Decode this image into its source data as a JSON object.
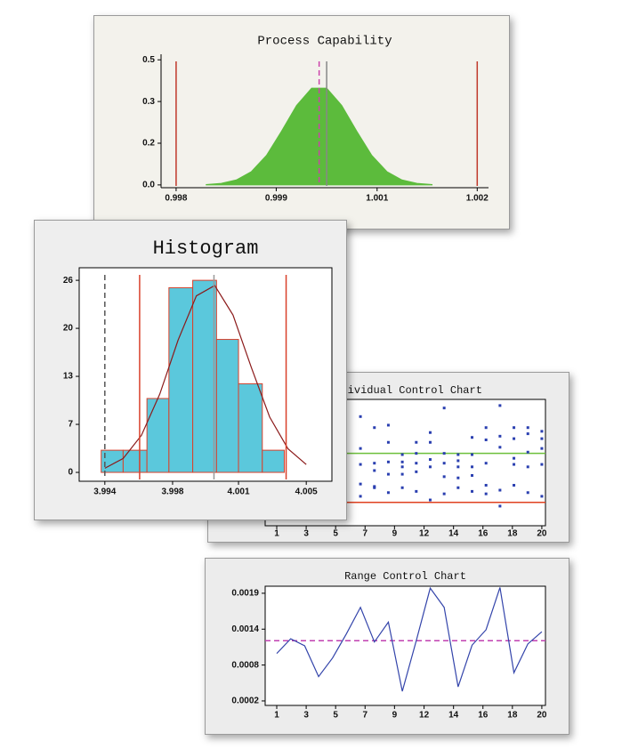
{
  "chart_data": [
    {
      "type": "area",
      "title": "Process Capability",
      "x": [
        0.9984,
        0.9986,
        0.9988,
        0.999,
        0.9992,
        0.9994,
        0.9996,
        0.9998,
        1.0,
        1.0002,
        1.0004,
        1.0006,
        1.0008,
        1.001,
        1.0012,
        1.0014
      ],
      "values": [
        0.0014,
        0.0055,
        0.018,
        0.048,
        0.106,
        0.193,
        0.286,
        0.348,
        0.348,
        0.286,
        0.193,
        0.106,
        0.048,
        0.018,
        0.0055,
        0.0014
      ],
      "color": "#5cbb3c",
      "xlim": [
        0.9978,
        1.00215
      ],
      "ylim": [
        -0.01,
        0.47
      ],
      "xticks": [
        0.998,
        {
          "value": 0.99933,
          "label": "0.999"
        },
        {
          "value": 1.00067,
          "label": "1.001"
        },
        1.002
      ],
      "yticks": [
        {
          "value": 0,
          "label": "0.0"
        },
        {
          "value": 0.15,
          "label": "0.2"
        },
        0.3,
        {
          "value": 0.45,
          "label": "0.5"
        }
      ],
      "vlines": [
        {
          "value": 0.998,
          "color": "#c0392b"
        },
        {
          "value": 1.002,
          "color": "#c0392b"
        },
        {
          "value": 0.9999,
          "color": "#cc44aa",
          "dash": true
        },
        {
          "value": 1.0,
          "color": "#888888"
        }
      ]
    },
    {
      "type": "histogram",
      "title": "Histogram",
      "bins": [
        3.9938,
        3.995,
        3.9963,
        3.9975,
        3.9988,
        4.0001,
        4.0013,
        4.0026,
        4.0038
      ],
      "values": [
        3,
        3,
        10,
        25,
        26,
        18,
        12,
        3
      ],
      "color": "#5bc8dc",
      "edgecolor": "#d9412b",
      "curve": {
        "x": [
          3.994,
          3.995,
          3.996,
          3.997,
          3.998,
          3.999,
          4.0,
          4.001,
          4.002,
          4.003,
          4.004,
          4.005
        ],
        "values": [
          0.56,
          1.88,
          5.02,
          10.6,
          17.9,
          23.9,
          25.3,
          21.3,
          14.2,
          7.5,
          3.2,
          1.06
        ],
        "color": "#8b1a1a"
      },
      "xlim": [
        3.9926,
        4.0064
      ],
      "ylim": [
        -1.2,
        27.7
      ],
      "xticks": [
        3.994,
        {
          "value": 3.9977,
          "label": "3.998"
        },
        {
          "value": 4.0013,
          "label": "4.001"
        },
        4.005
      ],
      "yticks": [
        0,
        {
          "value": 6.5,
          "label": "7"
        },
        13,
        {
          "value": 19.5,
          "label": "20"
        },
        26
      ],
      "vlines": [
        {
          "value": 3.994,
          "color": "#555555",
          "dash": true
        },
        {
          "value": 3.9959,
          "color": "#d9412b"
        },
        {
          "value": 4.0039,
          "color": "#d9412b"
        },
        {
          "value": 3.99996,
          "color": "#999999"
        }
      ]
    },
    {
      "type": "scatter",
      "title": "Individual Control Chart",
      "x": [
        7,
        7,
        7,
        7,
        7,
        8,
        8,
        8,
        8,
        8,
        9,
        9,
        9,
        9,
        9,
        10,
        10,
        10,
        10,
        10,
        11,
        11,
        11,
        11,
        11,
        12,
        12,
        12,
        12,
        12,
        13,
        13,
        13,
        13,
        13,
        14,
        14,
        14,
        14,
        14,
        15,
        15,
        15,
        15,
        15,
        16,
        16,
        16,
        16,
        16,
        17,
        17,
        17,
        17,
        17,
        18,
        18,
        18,
        18,
        18,
        19,
        19,
        19,
        19,
        19,
        20,
        20,
        20,
        20,
        20
      ],
      "values": [
        4.003,
        4.0004,
        3.9991,
        3.9975,
        3.9965,
        4.0021,
        3.9992,
        3.9973,
        3.9972,
        3.9986,
        4.0023,
        4.0009,
        3.9993,
        3.9983,
        3.9968,
        3.9999,
        3.9993,
        3.9989,
        3.9983,
        3.9972,
        4.0009,
        4,
        3.9992,
        3.9985,
        3.9969,
        4.0017,
        4.0009,
        3.9995,
        3.9989,
        3.9962,
        4.0037,
        4,
        3.9992,
        3.9981,
        3.9967,
        3.9999,
        3.9994,
        3.9989,
        3.998,
        3.9972,
        4.0013,
        3.9999,
        3.9989,
        3.9982,
        3.9969,
        4.0021,
        4.0011,
        3.9992,
        3.9974,
        3.9967,
        4.0039,
        4.0014,
        4.0005,
        3.997,
        3.9957,
        4.0021,
        4.0012,
        3.9996,
        3.9991,
        3.9974,
        4.0021,
        4.0016,
        4.0001,
        3.9989,
        3.9968,
        4.0018,
        4.0012,
        4.0004,
        3.9991,
        3.9965
      ],
      "color": "#2a3fb0",
      "xlim": [
        0.17,
        20.26
      ],
      "ylim": [
        3.9941,
        4.0044
      ],
      "xticks": [
        1,
        {
          "value": 3.11,
          "label": "3"
        },
        {
          "value": 5.22,
          "label": "5"
        },
        {
          "value": 7.33,
          "label": "7"
        },
        {
          "value": 9.44,
          "label": "9"
        },
        {
          "value": 11.56,
          "label": "12"
        },
        {
          "value": 13.67,
          "label": "14"
        },
        {
          "value": 15.78,
          "label": "16"
        },
        {
          "value": 17.89,
          "label": "18"
        },
        20
      ],
      "hlines": [
        {
          "value": 4,
          "color": "#6cbf3a"
        },
        {
          "value": 3.996,
          "color": "#e0401f"
        }
      ]
    },
    {
      "type": "line",
      "title": "Range Control Chart",
      "x": [
        1,
        2,
        3,
        4,
        5,
        6,
        7,
        8,
        9,
        10,
        11,
        12,
        13,
        14,
        15,
        16,
        17,
        18,
        19,
        20
      ],
      "values": [
        0.00098,
        0.00121,
        0.0011,
        0.00062,
        0.00091,
        0.00129,
        0.0017,
        0.00116,
        0.00147,
        0.00039,
        0.00118,
        0.002,
        0.0017,
        0.00046,
        0.00111,
        0.00135,
        0.00201,
        0.00068,
        0.00113,
        0.00132
      ],
      "color": "#3344aa",
      "xlim": [
        0.17,
        20.26
      ],
      "ylim": [
        0.00017,
        0.00203
      ],
      "xticks": [
        1,
        {
          "value": 3.11,
          "label": "3"
        },
        {
          "value": 5.22,
          "label": "5"
        },
        {
          "value": 7.33,
          "label": "7"
        },
        {
          "value": 9.44,
          "label": "9"
        },
        {
          "value": 11.56,
          "label": "12"
        },
        {
          "value": 13.67,
          "label": "14"
        },
        {
          "value": 15.78,
          "label": "16"
        },
        {
          "value": 17.89,
          "label": "18"
        },
        20
      ],
      "yticks": [
        {
          "value": 0.00024,
          "label": "0.0002"
        },
        {
          "value": 0.0008,
          "label": "0.0008"
        },
        {
          "value": 0.00136,
          "label": "0.0014"
        },
        {
          "value": 0.00192,
          "label": "0.0019"
        }
      ],
      "hlines": [
        {
          "value": 0.00118,
          "color": "#c040b0",
          "dash": true
        }
      ]
    }
  ]
}
